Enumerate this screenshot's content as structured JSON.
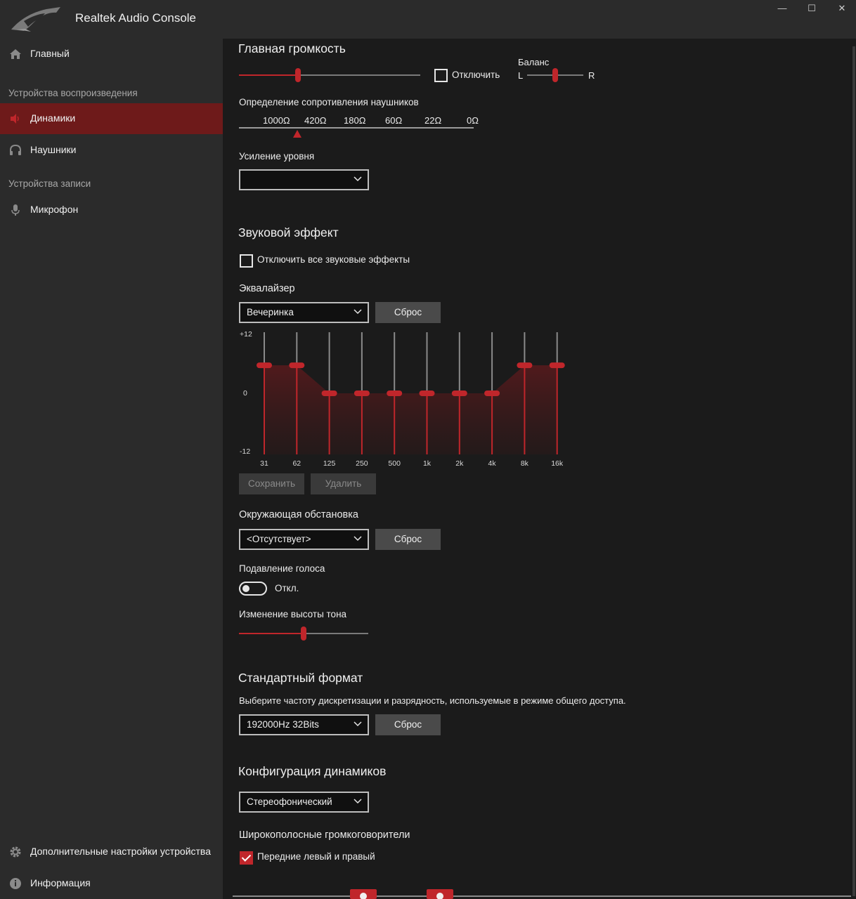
{
  "app": {
    "title": "Realtek Audio Console"
  },
  "window": {
    "minimize": "—",
    "maximize": "☐",
    "close": "✕"
  },
  "sidebar": {
    "home": "Главный",
    "playback_header": "Устройства воспроизведения",
    "playback_items": [
      {
        "label": "Динамики",
        "icon": "speaker-icon",
        "active": true
      },
      {
        "label": "Наушники",
        "icon": "headphones-icon",
        "active": false
      }
    ],
    "record_header": "Устройства записи",
    "record_items": [
      {
        "label": "Микрофон",
        "icon": "microphone-icon"
      }
    ],
    "advanced": "Дополнительные настройки устройства",
    "info": "Информация"
  },
  "main_volume": {
    "title": "Главная громкость",
    "level_percent": 32,
    "mute_label": "Отключить",
    "muted": false,
    "balance": {
      "label": "Баланс",
      "left": "L",
      "right": "R",
      "position": 0.5
    }
  },
  "impedance": {
    "label": "Определение сопротивления наушников",
    "values": [
      "1000Ω",
      "420Ω",
      "180Ω",
      "60Ω",
      "22Ω",
      "0Ω"
    ],
    "selected_index": 0
  },
  "gain": {
    "label": "Усиление уровня",
    "value": ""
  },
  "sound_effects": {
    "title": "Звуковой эффект",
    "disable_all_label": "Отключить все звуковые эффекты",
    "disable_all_checked": false
  },
  "equalizer": {
    "label": "Эквалайзер",
    "preset": "Вечеринка",
    "reset": "Сброс",
    "y_max": "+12",
    "y_mid": "0",
    "y_min": "-12",
    "bands": [
      {
        "freq": "31",
        "gain": 5.5
      },
      {
        "freq": "62",
        "gain": 5.5
      },
      {
        "freq": "125",
        "gain": 0
      },
      {
        "freq": "250",
        "gain": 0
      },
      {
        "freq": "500",
        "gain": 0
      },
      {
        "freq": "1k",
        "gain": 0
      },
      {
        "freq": "2k",
        "gain": 0
      },
      {
        "freq": "4k",
        "gain": 0
      },
      {
        "freq": "8k",
        "gain": 5.5
      },
      {
        "freq": "16k",
        "gain": 5.5
      }
    ],
    "save": "Сохранить",
    "delete": "Удалить",
    "accent": "#c0262b"
  },
  "environment": {
    "label": "Окружающая обстановка",
    "value": "<Отсутствует>",
    "reset": "Сброс"
  },
  "voice_cancel": {
    "label": "Подавление голоса",
    "state": "Откл.",
    "on": false
  },
  "pitch": {
    "label": "Изменение высоты тона",
    "position_percent": 50
  },
  "default_format": {
    "title": "Стандартный формат",
    "description": "Выберите частоту дискретизации и разрядность, используемые в режиме общего доступа.",
    "value": "192000Hz 32Bits",
    "reset": "Сброс"
  },
  "speaker_config": {
    "title": "Конфигурация динамиков",
    "value": "Стереофонический",
    "fullrange_label": "Широкополосные громкоговорители",
    "front_lr_label": "Передние левый и правый",
    "front_lr_checked": true
  }
}
